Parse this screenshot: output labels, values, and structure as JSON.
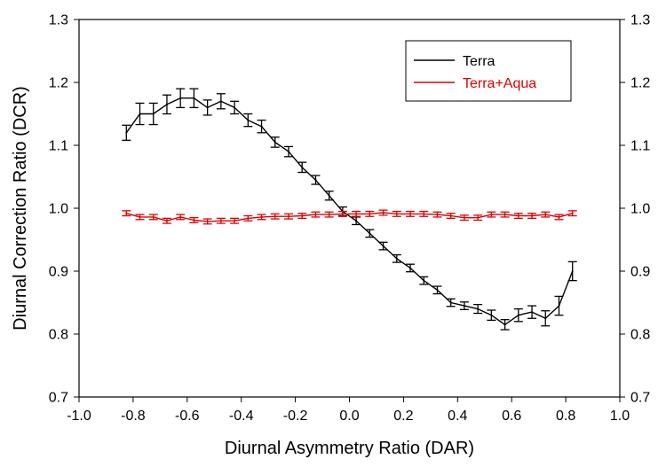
{
  "chart_data": {
    "type": "line",
    "title": "",
    "xlabel": "Diurnal Asymmetry Ratio (DAR)",
    "ylabel": "Diurnal Correction Ratio (DCR)",
    "xlim": [
      -1.0,
      1.0
    ],
    "ylim": [
      0.7,
      1.3
    ],
    "x_ticks": [
      "-1.0",
      "-0.8",
      "-0.6",
      "-0.4",
      "-0.2",
      "0.0",
      "0.2",
      "0.4",
      "0.6",
      "0.8",
      "1.0"
    ],
    "y_ticks": [
      "0.7",
      "0.8",
      "0.9",
      "1.0",
      "1.1",
      "1.2",
      "1.3"
    ],
    "right_axis_mirrors_left": true,
    "grid": false,
    "legend_position": "top-right",
    "error_bars": true,
    "x": [
      -0.825,
      -0.775,
      -0.725,
      -0.675,
      -0.625,
      -0.575,
      -0.525,
      -0.475,
      -0.425,
      -0.375,
      -0.325,
      -0.275,
      -0.225,
      -0.175,
      -0.125,
      -0.075,
      -0.025,
      0.025,
      0.075,
      0.125,
      0.175,
      0.225,
      0.275,
      0.325,
      0.375,
      0.425,
      0.475,
      0.525,
      0.575,
      0.625,
      0.675,
      0.725,
      0.775,
      0.825
    ],
    "series": [
      {
        "name": "Terra",
        "color": "#000000",
        "values": [
          1.12,
          1.15,
          1.15,
          1.165,
          1.175,
          1.175,
          1.16,
          1.17,
          1.16,
          1.14,
          1.13,
          1.105,
          1.09,
          1.065,
          1.045,
          1.02,
          0.995,
          0.98,
          0.96,
          0.94,
          0.92,
          0.905,
          0.885,
          0.87,
          0.85,
          0.845,
          0.84,
          0.83,
          0.815,
          0.83,
          0.835,
          0.825,
          0.845,
          0.9
        ],
        "errors": [
          0.012,
          0.017,
          0.017,
          0.015,
          0.015,
          0.015,
          0.012,
          0.012,
          0.01,
          0.01,
          0.01,
          0.008,
          0.008,
          0.008,
          0.007,
          0.007,
          0.007,
          0.006,
          0.006,
          0.006,
          0.006,
          0.006,
          0.006,
          0.006,
          0.006,
          0.006,
          0.007,
          0.008,
          0.008,
          0.01,
          0.01,
          0.012,
          0.015,
          0.015
        ]
      },
      {
        "name": "Terra+Aqua",
        "color": "#dc0000",
        "values": [
          0.992,
          0.986,
          0.986,
          0.98,
          0.986,
          0.981,
          0.979,
          0.98,
          0.98,
          0.984,
          0.986,
          0.987,
          0.987,
          0.988,
          0.99,
          0.99,
          0.991,
          0.991,
          0.991,
          0.993,
          0.991,
          0.991,
          0.991,
          0.99,
          0.988,
          0.985,
          0.985,
          0.99,
          0.99,
          0.988,
          0.988,
          0.99,
          0.986,
          0.992
        ]
      }
    ]
  }
}
